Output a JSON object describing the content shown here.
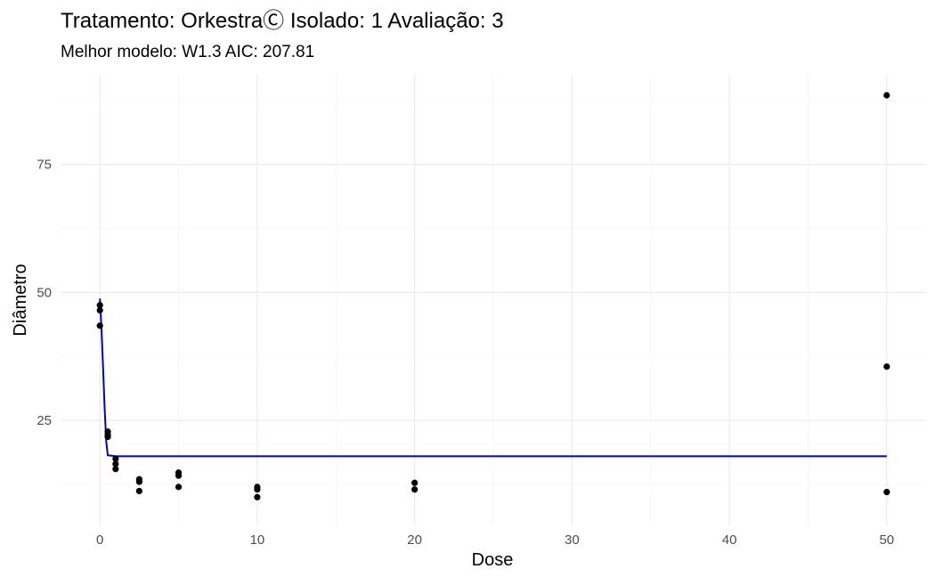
{
  "chart_data": {
    "type": "scatter",
    "title": "Tratamento: OrkestraⒸ Isolado: 1 Avaliação: 3",
    "subtitle": "Melhor modelo: W1.3 AIC: 207.81",
    "xlabel": "Dose",
    "ylabel": "Diâmetro",
    "xlim": [
      -2.5,
      52.5
    ],
    "ylim": [
      4.5,
      92.5
    ],
    "x_ticks": [
      0,
      10,
      20,
      30,
      40,
      50
    ],
    "y_ticks": [
      25,
      50,
      75
    ],
    "grid": true,
    "legend": "none",
    "points_color": "#000000",
    "line_color": "#0000cc",
    "points": [
      {
        "x": 0,
        "y": 47.5
      },
      {
        "x": 0,
        "y": 46.5
      },
      {
        "x": 0,
        "y": 43.5
      },
      {
        "x": 0.5,
        "y": 22.8
      },
      {
        "x": 0.5,
        "y": 22.2
      },
      {
        "x": 0.5,
        "y": 21.8
      },
      {
        "x": 1,
        "y": 17.5
      },
      {
        "x": 1,
        "y": 16.5
      },
      {
        "x": 1,
        "y": 15.5
      },
      {
        "x": 2.5,
        "y": 13.5
      },
      {
        "x": 2.5,
        "y": 13.0
      },
      {
        "x": 2.5,
        "y": 11.2
      },
      {
        "x": 5,
        "y": 14.8
      },
      {
        "x": 5,
        "y": 14.2
      },
      {
        "x": 5,
        "y": 12.0
      },
      {
        "x": 10,
        "y": 12.0
      },
      {
        "x": 10,
        "y": 11.5
      },
      {
        "x": 10,
        "y": 10.0
      },
      {
        "x": 20,
        "y": 12.8
      },
      {
        "x": 20,
        "y": 11.5
      },
      {
        "x": 50,
        "y": 88.5
      },
      {
        "x": 50,
        "y": 35.5
      },
      {
        "x": 50,
        "y": 11.0
      }
    ],
    "fitted_line": {
      "name": "W1.3",
      "x": [
        0,
        0.1,
        0.2,
        0.3,
        0.4,
        0.5,
        1,
        2.5,
        5,
        10,
        20,
        50
      ],
      "y": [
        48.8,
        43.0,
        35.5,
        27.5,
        21.0,
        18.2,
        18.0,
        18.0,
        18.0,
        18.0,
        18.0,
        18.0
      ]
    }
  }
}
